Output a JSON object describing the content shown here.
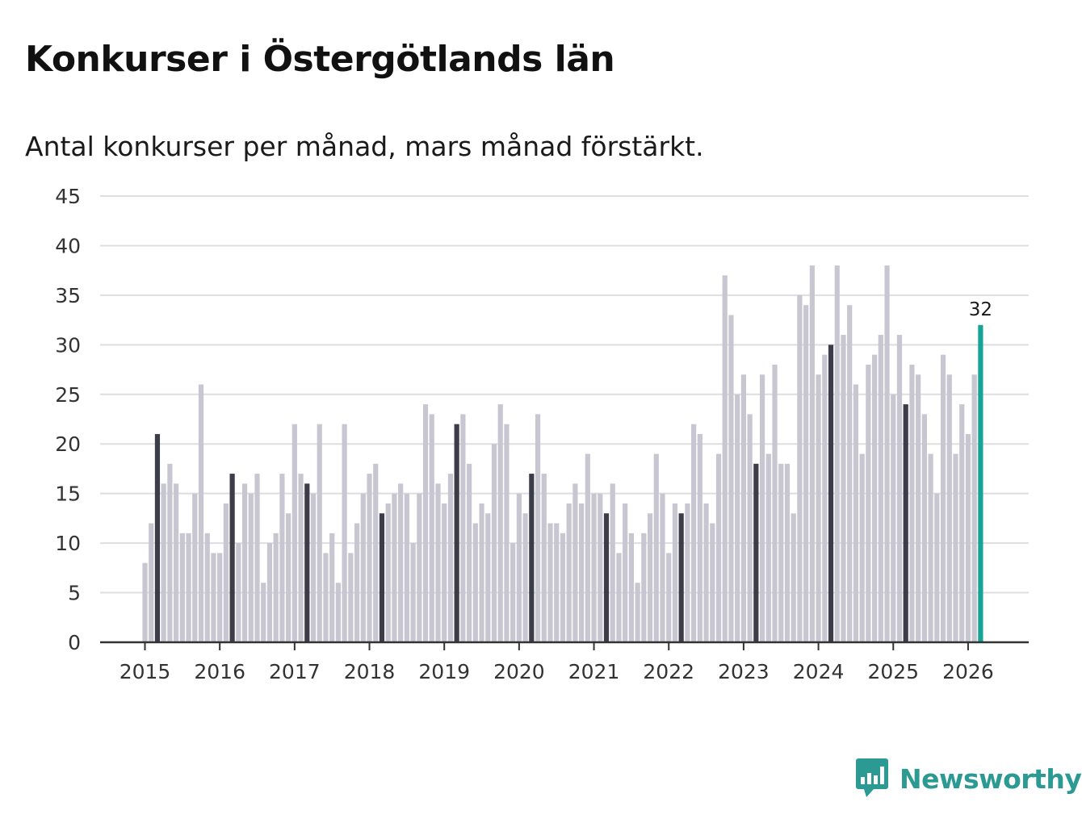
{
  "header": {
    "title": "Konkurser i Östergötlands län",
    "subtitle": "Antal konkurser per månad, mars månad förstärkt."
  },
  "brand": {
    "name": "Newsworthy",
    "icon": "newsworthy-logo-icon",
    "color": "#2b9a92"
  },
  "chart_data": {
    "type": "bar",
    "title": "Konkurser i Östergötlands län",
    "subtitle": "Antal konkurser per månad, mars månad förstärkt.",
    "xlabel": "",
    "ylabel": "",
    "ylim": [
      0,
      45
    ],
    "yticks": [
      "0",
      "5",
      "10",
      "15",
      "20",
      "25",
      "30",
      "35",
      "40",
      "45"
    ],
    "year_labels": [
      "2015",
      "2016",
      "2017",
      "2018",
      "2019",
      "2020",
      "2021",
      "2022",
      "2023",
      "2024",
      "2025",
      "2026"
    ],
    "grid": true,
    "series": [
      {
        "name": "Antal konkurser",
        "start": "2015-01",
        "values": [
          8,
          12,
          21,
          16,
          18,
          16,
          11,
          11,
          15,
          26,
          11,
          9,
          9,
          14,
          17,
          10,
          16,
          15,
          17,
          6,
          10,
          11,
          17,
          13,
          22,
          17,
          16,
          15,
          22,
          9,
          11,
          6,
          22,
          9,
          12,
          15,
          17,
          18,
          13,
          14,
          15,
          16,
          15,
          10,
          15,
          24,
          23,
          16,
          14,
          17,
          22,
          23,
          18,
          12,
          14,
          13,
          20,
          24,
          22,
          10,
          15,
          13,
          17,
          23,
          17,
          12,
          12,
          11,
          14,
          16,
          14,
          19,
          15,
          15,
          13,
          16,
          9,
          14,
          11,
          6,
          11,
          13,
          19,
          15,
          9,
          14,
          13,
          14,
          22,
          21,
          14,
          12,
          19,
          37,
          33,
          25,
          27,
          23,
          18,
          27,
          19,
          28,
          18,
          18,
          13,
          35,
          34,
          38,
          27,
          29,
          30,
          38,
          31,
          34,
          26,
          19,
          28,
          29,
          31,
          38,
          25,
          31,
          24,
          28,
          27,
          23,
          19,
          15,
          29,
          27,
          19,
          24,
          21,
          27,
          32
        ]
      }
    ],
    "highlight_month": "mars",
    "latest_label": "32",
    "colors": {
      "bar": "#c8c7d1",
      "march": "#3d3c49",
      "latest": "#15a497",
      "grid": "#dddde2",
      "axis": "#333333"
    }
  }
}
